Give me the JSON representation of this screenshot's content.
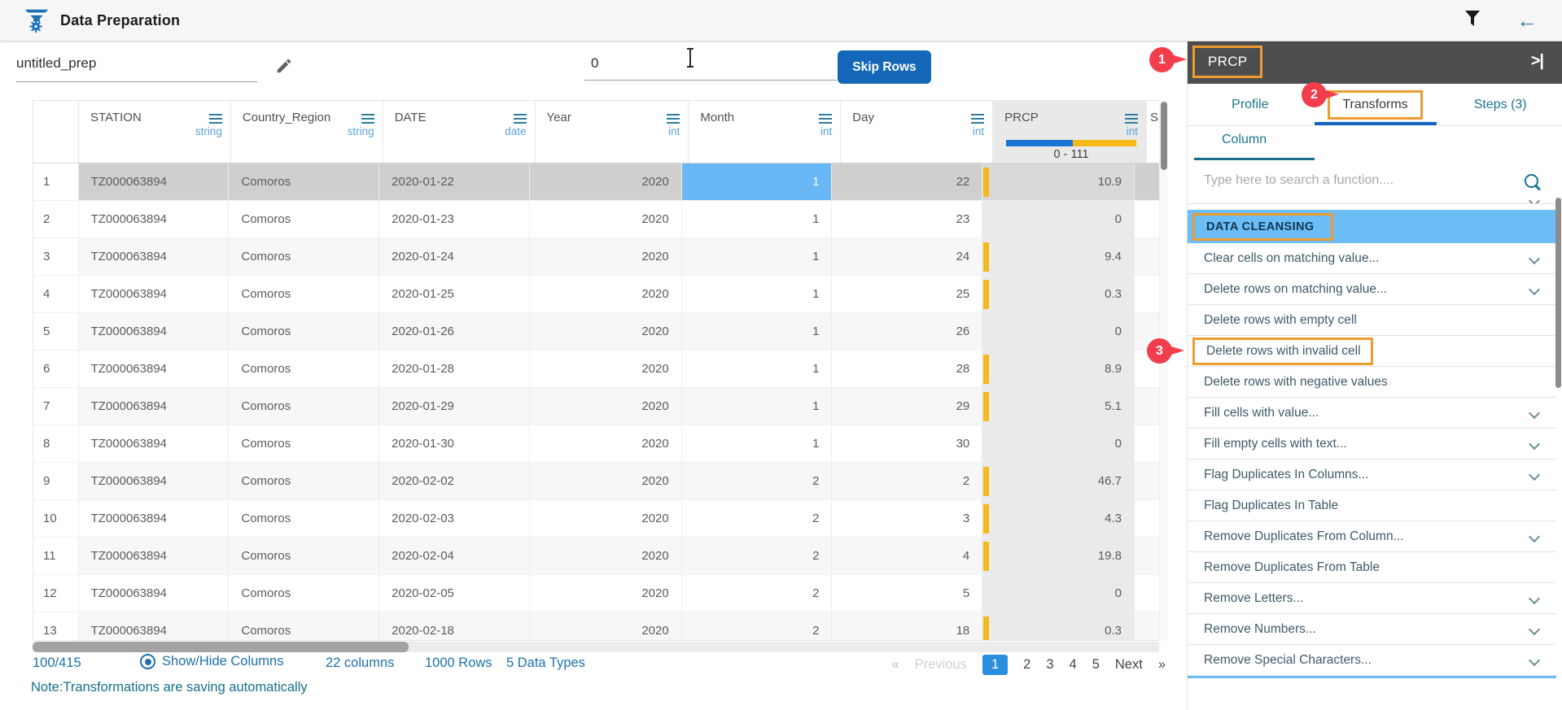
{
  "topbar": {
    "title": "Data Preparation",
    "back_icon": "←"
  },
  "prep": {
    "name": "untitled_prep"
  },
  "skip": {
    "value": "0",
    "button": "Skip Rows"
  },
  "table": {
    "columns": [
      {
        "name": "STATION",
        "type": "string",
        "align": "left"
      },
      {
        "name": "Country_Region",
        "type": "string",
        "align": "left"
      },
      {
        "name": "DATE",
        "type": "date",
        "align": "left"
      },
      {
        "name": "Year",
        "type": "int",
        "align": "right"
      },
      {
        "name": "Month",
        "type": "int",
        "align": "right"
      },
      {
        "name": "Day",
        "type": "int",
        "align": "right"
      },
      {
        "name": "PRCP",
        "type": "int",
        "align": "right",
        "selected": true,
        "range": "0 - 111"
      },
      {
        "name": "S",
        "type": "",
        "align": "left",
        "partial": true
      }
    ],
    "rows": [
      {
        "idx": "1",
        "station": "TZ000063894",
        "country": "Comoros",
        "date": "2020-01-22",
        "year": "2020",
        "month": "1",
        "day": "22",
        "prcp": "10.9",
        "selected": true
      },
      {
        "idx": "2",
        "station": "TZ000063894",
        "country": "Comoros",
        "date": "2020-01-23",
        "year": "2020",
        "month": "1",
        "day": "23",
        "prcp": "0"
      },
      {
        "idx": "3",
        "station": "TZ000063894",
        "country": "Comoros",
        "date": "2020-01-24",
        "year": "2020",
        "month": "1",
        "day": "24",
        "prcp": "9.4"
      },
      {
        "idx": "4",
        "station": "TZ000063894",
        "country": "Comoros",
        "date": "2020-01-25",
        "year": "2020",
        "month": "1",
        "day": "25",
        "prcp": "0.3"
      },
      {
        "idx": "5",
        "station": "TZ000063894",
        "country": "Comoros",
        "date": "2020-01-26",
        "year": "2020",
        "month": "1",
        "day": "26",
        "prcp": "0"
      },
      {
        "idx": "6",
        "station": "TZ000063894",
        "country": "Comoros",
        "date": "2020-01-28",
        "year": "2020",
        "month": "1",
        "day": "28",
        "prcp": "8.9"
      },
      {
        "idx": "7",
        "station": "TZ000063894",
        "country": "Comoros",
        "date": "2020-01-29",
        "year": "2020",
        "month": "1",
        "day": "29",
        "prcp": "5.1"
      },
      {
        "idx": "8",
        "station": "TZ000063894",
        "country": "Comoros",
        "date": "2020-01-30",
        "year": "2020",
        "month": "1",
        "day": "30",
        "prcp": "0"
      },
      {
        "idx": "9",
        "station": "TZ000063894",
        "country": "Comoros",
        "date": "2020-02-02",
        "year": "2020",
        "month": "2",
        "day": "2",
        "prcp": "46.7"
      },
      {
        "idx": "10",
        "station": "TZ000063894",
        "country": "Comoros",
        "date": "2020-02-03",
        "year": "2020",
        "month": "2",
        "day": "3",
        "prcp": "4.3"
      },
      {
        "idx": "11",
        "station": "TZ000063894",
        "country": "Comoros",
        "date": "2020-02-04",
        "year": "2020",
        "month": "2",
        "day": "4",
        "prcp": "19.8"
      },
      {
        "idx": "12",
        "station": "TZ000063894",
        "country": "Comoros",
        "date": "2020-02-05",
        "year": "2020",
        "month": "2",
        "day": "5",
        "prcp": "0"
      },
      {
        "idx": "13",
        "station": "TZ000063894",
        "country": "Comoros",
        "date": "2020-02-18",
        "year": "2020",
        "month": "2",
        "day": "18",
        "prcp": "0.3"
      }
    ],
    "selected_cell": {
      "row": "1",
      "column": "Month"
    }
  },
  "footer": {
    "count": "100/415",
    "show_hide": "Show/Hide Columns",
    "columns_summary": "22 columns",
    "rows_summary": "1000 Rows",
    "types_summary": "5 Data Types",
    "note": "Note:Transformations are saving automatically"
  },
  "pagination": {
    "first": "«",
    "prev": "Previous",
    "pages": [
      "1",
      "2",
      "3",
      "4",
      "5"
    ],
    "active": "1",
    "next": "Next",
    "last": "»"
  },
  "panel": {
    "header": "PRCP",
    "collapse_icon": ">|",
    "tabs": [
      {
        "label": "Profile",
        "active": false
      },
      {
        "label": "Transforms",
        "active": true
      },
      {
        "label": "Steps (3)",
        "active": false
      }
    ],
    "subtab": "Column",
    "search_placeholder": "Type here to search a function....",
    "category": "DATA CLEANSING",
    "functions": [
      {
        "label": "Clear cells on matching value...",
        "expandable": true
      },
      {
        "label": "Delete rows on matching value...",
        "expandable": true
      },
      {
        "label": "Delete rows with empty cell",
        "expandable": false
      },
      {
        "label": "Delete rows with invalid cell",
        "expandable": false,
        "highlighted": true
      },
      {
        "label": "Delete rows with negative values",
        "expandable": false
      },
      {
        "label": "Fill cells with value...",
        "expandable": true
      },
      {
        "label": "Fill empty cells with text...",
        "expandable": true
      },
      {
        "label": "Flag Duplicates In Columns...",
        "expandable": true
      },
      {
        "label": "Flag Duplicates In Table",
        "expandable": false
      },
      {
        "label": "Remove Duplicates From Column...",
        "expandable": true
      },
      {
        "label": "Remove Duplicates From Table",
        "expandable": false
      },
      {
        "label": "Remove Letters...",
        "expandable": true
      },
      {
        "label": "Remove Numbers...",
        "expandable": true
      },
      {
        "label": "Remove Special Characters...",
        "expandable": true
      }
    ]
  },
  "annotations": [
    {
      "label": "1",
      "target": "PRCP panel header"
    },
    {
      "label": "2",
      "target": "Transforms tab"
    },
    {
      "label": "3",
      "target": "Delete rows with invalid cell"
    }
  ],
  "colors": {
    "accent_orange": "#ed9c2f",
    "badge_red": "#f23d4c",
    "category_blue": "#6cbcf5",
    "selected_cell_blue": "#6ab7f5",
    "range_bar_blue": "#1976d2",
    "range_bar_yellow": "#f5b91c",
    "button_blue": "#1467b8",
    "pagination_active_blue": "#2a8fdf",
    "panel_header_gray": "#4e4e4e",
    "link_blue": "#1d71ad",
    "teal": "#1b7390"
  }
}
